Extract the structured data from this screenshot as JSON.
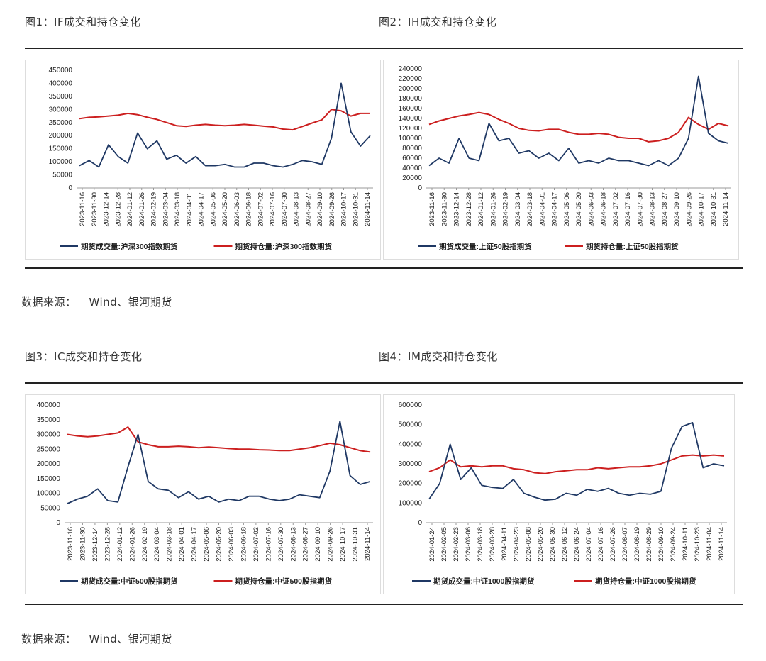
{
  "section1": {
    "fig1_title": "图1：IF成交和持仓变化",
    "fig2_title": "图2：IH成交和持仓变化",
    "source_label": "数据来源：",
    "source_text": "Wind、银河期货"
  },
  "section2": {
    "fig3_title": "图3：IC成交和持仓变化",
    "fig4_title": "图4：IM成交和持仓变化",
    "source_label": "数据来源：",
    "source_text": "Wind、银河期货"
  },
  "colors": {
    "volume": "#1f3864",
    "open_interest": "#cc1f1f"
  },
  "chart_data": [
    {
      "type": "line",
      "ylim": [
        0,
        450000
      ],
      "yticks": [
        0,
        50000,
        100000,
        150000,
        200000,
        250000,
        300000,
        350000,
        400000,
        450000
      ],
      "x_ticks": [
        "2023-11-16",
        "2023-11-30",
        "2023-12-14",
        "2023-12-28",
        "2024-01-12",
        "2024-01-26",
        "2024-02-19",
        "2024-03-04",
        "2024-03-18",
        "2024-04-01",
        "2024-04-17",
        "2024-05-06",
        "2024-05-20",
        "2024-06-03",
        "2024-06-18",
        "2024-07-02",
        "2024-07-16",
        "2024-07-30",
        "2024-08-13",
        "2024-08-27",
        "2024-09-10",
        "2024-09-26",
        "2024-10-17",
        "2024-10-31",
        "2024-11-14"
      ],
      "legend_position": "bottom",
      "series": [
        {
          "name": "期货成交量:沪深300指数期货",
          "color": "#1f3864",
          "values": [
            85000,
            105000,
            80000,
            165000,
            120000,
            95000,
            210000,
            150000,
            180000,
            110000,
            125000,
            95000,
            120000,
            85000,
            85000,
            90000,
            80000,
            80000,
            95000,
            95000,
            85000,
            80000,
            90000,
            105000,
            100000,
            90000,
            190000,
            400000,
            215000,
            160000,
            200000
          ]
        },
        {
          "name": "期货持仓量:沪深300指数期货",
          "color": "#cc1f1f",
          "values": [
            265000,
            270000,
            272000,
            275000,
            278000,
            285000,
            280000,
            270000,
            262000,
            250000,
            238000,
            235000,
            240000,
            243000,
            240000,
            238000,
            240000,
            243000,
            240000,
            236000,
            233000,
            225000,
            222000,
            235000,
            248000,
            260000,
            300000,
            295000,
            275000,
            285000,
            285000
          ]
        }
      ]
    },
    {
      "type": "line",
      "ylim": [
        0,
        240000
      ],
      "yticks": [
        0,
        20000,
        40000,
        60000,
        80000,
        100000,
        120000,
        140000,
        160000,
        180000,
        200000,
        220000,
        240000
      ],
      "x_ticks": [
        "2023-11-16",
        "2023-11-30",
        "2023-12-14",
        "2023-12-28",
        "2024-01-12",
        "2024-01-26",
        "2024-02-19",
        "2024-03-04",
        "2024-03-18",
        "2024-04-01",
        "2024-04-17",
        "2024-05-06",
        "2024-05-20",
        "2024-06-03",
        "2024-06-18",
        "2024-07-02",
        "2024-07-16",
        "2024-07-30",
        "2024-08-13",
        "2024-08-27",
        "2024-09-10",
        "2024-09-26",
        "2024-10-17",
        "2024-10-31",
        "2024-11-14"
      ],
      "legend_position": "bottom",
      "series": [
        {
          "name": "期货成交量:上证50股指期货",
          "color": "#1f3864",
          "values": [
            45000,
            60000,
            50000,
            100000,
            60000,
            55000,
            130000,
            95000,
            100000,
            70000,
            75000,
            60000,
            70000,
            55000,
            80000,
            50000,
            55000,
            50000,
            60000,
            55000,
            55000,
            50000,
            45000,
            55000,
            45000,
            60000,
            100000,
            225000,
            110000,
            95000,
            90000
          ]
        },
        {
          "name": "期货持仓量:上证50股指期货",
          "color": "#cc1f1f",
          "values": [
            128000,
            135000,
            140000,
            145000,
            148000,
            152000,
            148000,
            138000,
            130000,
            120000,
            116000,
            115000,
            118000,
            118000,
            112000,
            108000,
            108000,
            110000,
            108000,
            102000,
            100000,
            100000,
            93000,
            95000,
            100000,
            112000,
            142000,
            128000,
            118000,
            130000,
            125000
          ]
        }
      ]
    },
    {
      "type": "line",
      "ylim": [
        0,
        400000
      ],
      "yticks": [
        0,
        50000,
        100000,
        150000,
        200000,
        250000,
        300000,
        350000,
        400000
      ],
      "x_ticks": [
        "2023-11-16",
        "2023-11-30",
        "2023-12-14",
        "2023-12-28",
        "2024-01-12",
        "2024-01-26",
        "2024-02-19",
        "2024-03-04",
        "2024-03-18",
        "2024-04-01",
        "2024-04-17",
        "2024-05-06",
        "2024-05-20",
        "2024-06-03",
        "2024-06-18",
        "2024-07-02",
        "2024-07-16",
        "2024-07-30",
        "2024-08-13",
        "2024-08-27",
        "2024-09-10",
        "2024-09-26",
        "2024-10-17",
        "2024-10-31",
        "2024-11-14"
      ],
      "legend_position": "bottom",
      "series": [
        {
          "name": "期货成交量:中证500股指期货",
          "color": "#1f3864",
          "values": [
            65000,
            80000,
            90000,
            115000,
            75000,
            70000,
            190000,
            300000,
            140000,
            115000,
            110000,
            85000,
            105000,
            80000,
            90000,
            70000,
            80000,
            75000,
            90000,
            90000,
            80000,
            75000,
            80000,
            95000,
            90000,
            85000,
            175000,
            345000,
            160000,
            130000,
            140000
          ]
        },
        {
          "name": "期货持仓量:中证500股指期货",
          "color": "#cc1f1f",
          "values": [
            300000,
            295000,
            292000,
            295000,
            300000,
            305000,
            325000,
            275000,
            265000,
            258000,
            258000,
            260000,
            258000,
            255000,
            257000,
            255000,
            252000,
            250000,
            250000,
            248000,
            247000,
            245000,
            245000,
            250000,
            255000,
            262000,
            270000,
            265000,
            255000,
            245000,
            240000
          ]
        }
      ]
    },
    {
      "type": "line",
      "ylim": [
        0,
        600000
      ],
      "yticks": [
        0,
        100000,
        200000,
        300000,
        400000,
        500000,
        600000
      ],
      "x_ticks": [
        "2024-01-24",
        "2024-02-05",
        "2024-02-23",
        "2024-03-06",
        "2024-03-18",
        "2024-03-28",
        "2024-04-11",
        "2024-04-23",
        "2024-05-08",
        "2024-05-20",
        "2024-05-30",
        "2024-06-12",
        "2024-06-24",
        "2024-07-04",
        "2024-07-16",
        "2024-07-26",
        "2024-08-07",
        "2024-08-19",
        "2024-08-29",
        "2024-09-10",
        "2024-09-24",
        "2024-10-11",
        "2024-10-23",
        "2024-11-04",
        "2024-11-14"
      ],
      "legend_position": "bottom",
      "series": [
        {
          "name": "期货成交量:中证1000股指期货",
          "color": "#1f3864",
          "values": [
            120000,
            200000,
            400000,
            220000,
            280000,
            190000,
            180000,
            175000,
            220000,
            150000,
            130000,
            115000,
            120000,
            150000,
            140000,
            170000,
            160000,
            175000,
            150000,
            140000,
            150000,
            145000,
            160000,
            380000,
            490000,
            510000,
            280000,
            300000,
            290000
          ]
        },
        {
          "name": "期货持仓量:中证1000股指期货",
          "color": "#cc1f1f",
          "values": [
            260000,
            280000,
            320000,
            285000,
            290000,
            285000,
            290000,
            290000,
            275000,
            270000,
            255000,
            250000,
            260000,
            265000,
            270000,
            270000,
            280000,
            275000,
            280000,
            285000,
            285000,
            290000,
            300000,
            320000,
            340000,
            345000,
            340000,
            345000,
            340000
          ]
        }
      ]
    }
  ]
}
